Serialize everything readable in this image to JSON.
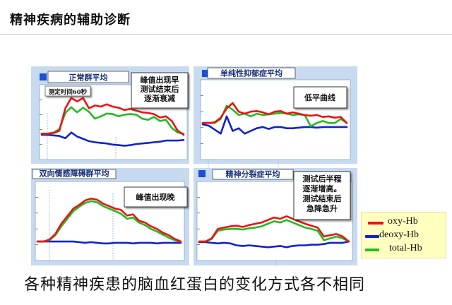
{
  "slide": {
    "title": "精神疾病的辅助诊断",
    "caption": "各种精神疾患的脑血红蛋白的变化方式各不相同"
  },
  "legend": [
    {
      "label": "oxy-Hb",
      "color": "#ee1111"
    },
    {
      "label": "deoxy-Hb",
      "color": "#1122cc"
    },
    {
      "label": "total-Hb",
      "color": "#22bb22"
    }
  ],
  "colors": {
    "panel_bg": "#c8daf0",
    "plot_bg": "#ffffff",
    "marker": "#1a4fd6",
    "gridline": "#8ec0e8"
  },
  "chart_data": [
    {
      "type": "line",
      "title": "正常群平均",
      "annotations": [
        "峰值出现早",
        "测试结束后",
        "逐渐衰减"
      ],
      "sub_label": "测定时间60秒",
      "series": [
        {
          "name": "oxy-Hb",
          "values": [
            0.0,
            0.0,
            0.01,
            0.05,
            0.44,
            0.62,
            0.56,
            0.62,
            0.44,
            0.49,
            0.47,
            0.51,
            0.47,
            0.45,
            0.41,
            0.43,
            0.4,
            0.37,
            0.36,
            0.34,
            0.28,
            0.3,
            0.22,
            0.05,
            -0.02
          ]
        },
        {
          "name": "deoxy-Hb",
          "values": [
            -0.02,
            -0.02,
            -0.03,
            -0.04,
            -0.08,
            0.02,
            -0.05,
            -0.09,
            -0.13,
            -0.15,
            -0.16,
            -0.17,
            -0.19,
            -0.2,
            -0.21,
            -0.2,
            -0.18,
            -0.17,
            -0.16,
            -0.15,
            -0.14,
            -0.12,
            -0.12,
            -0.12,
            -0.11
          ]
        },
        {
          "name": "total-Hb",
          "values": [
            0.0,
            0.0,
            0.02,
            0.08,
            0.36,
            0.46,
            0.37,
            0.45,
            0.38,
            0.26,
            0.3,
            0.35,
            0.34,
            0.3,
            0.33,
            0.34,
            0.33,
            0.26,
            0.24,
            0.29,
            0.22,
            0.24,
            0.1,
            0.02,
            0.0
          ]
        }
      ]
    },
    {
      "type": "line",
      "title": "单纯性抑郁症平均",
      "annotations": [
        "低平曲线"
      ],
      "series": [
        {
          "name": "oxy-Hb",
          "values": [
            0.0,
            0.0,
            0.01,
            0.08,
            0.22,
            0.3,
            0.17,
            0.14,
            0.17,
            0.18,
            0.16,
            0.13,
            0.17,
            0.18,
            0.14,
            0.16,
            0.14,
            0.12,
            0.11,
            0.12,
            0.09,
            0.1,
            0.08,
            0.09,
            0.0
          ]
        },
        {
          "name": "deoxy-Hb",
          "values": [
            -0.02,
            -0.04,
            -0.1,
            -0.16,
            0.1,
            -0.12,
            -0.08,
            -0.16,
            -0.12,
            -0.08,
            -0.06,
            -0.09,
            -0.06,
            -0.06,
            -0.08,
            -0.08,
            -0.07,
            -0.06,
            -0.06,
            -0.07,
            -0.06,
            -0.06,
            -0.06,
            -0.06,
            -0.06
          ]
        },
        {
          "name": "total-Hb",
          "values": [
            0.0,
            0.0,
            0.0,
            0.06,
            0.26,
            0.2,
            0.12,
            0.14,
            0.1,
            0.14,
            0.12,
            0.13,
            0.14,
            0.15,
            0.14,
            0.12,
            0.13,
            0.12,
            -0.05,
            0.0,
            0.03,
            0.0,
            0.0,
            0.06,
            0.0
          ]
        }
      ]
    },
    {
      "type": "line",
      "title": "双向情感障碍群平均",
      "annotations": [
        "峰值出现晚"
      ],
      "series": [
        {
          "name": "oxy-Hb",
          "values": [
            0.0,
            0.0,
            0.03,
            0.12,
            0.28,
            0.4,
            0.52,
            0.58,
            0.65,
            0.68,
            0.66,
            0.6,
            0.56,
            0.52,
            0.5,
            0.41,
            0.43,
            0.33,
            0.3,
            0.24,
            0.2,
            0.14,
            0.1,
            0.04,
            0.0
          ]
        },
        {
          "name": "deoxy-Hb",
          "values": [
            0.0,
            0.0,
            0.0,
            0.0,
            0.0,
            0.0,
            0.0,
            -0.01,
            -0.02,
            -0.01,
            -0.02,
            -0.03,
            -0.03,
            -0.02,
            -0.02,
            -0.02,
            -0.03,
            -0.02,
            -0.02,
            -0.02,
            -0.03,
            -0.02,
            -0.02,
            -0.02,
            -0.02
          ]
        },
        {
          "name": "total-Hb",
          "values": [
            0.0,
            0.0,
            0.02,
            0.1,
            0.24,
            0.36,
            0.48,
            0.55,
            0.61,
            0.64,
            0.62,
            0.56,
            0.52,
            0.48,
            0.44,
            0.36,
            0.38,
            0.3,
            0.26,
            0.2,
            0.16,
            0.11,
            0.06,
            0.02,
            0.0
          ]
        }
      ]
    },
    {
      "type": "line",
      "title": "精神分裂症平均",
      "annotations": [
        "测试后半程",
        "逐渐增高。",
        "测试结束后",
        "急降急升"
      ],
      "series": [
        {
          "name": "oxy-Hb",
          "values": [
            0.0,
            0.0,
            0.05,
            0.2,
            0.22,
            0.24,
            0.25,
            0.23,
            0.26,
            0.28,
            0.3,
            0.34,
            0.38,
            0.36,
            0.4,
            0.36,
            0.32,
            0.28,
            0.25,
            0.22,
            0.08,
            0.1,
            0.12,
            0.08,
            0.0
          ]
        },
        {
          "name": "deoxy-Hb",
          "values": [
            -0.01,
            -0.01,
            -0.02,
            -0.03,
            -0.02,
            -0.03,
            -0.06,
            -0.07,
            -0.06,
            -0.07,
            -0.08,
            -0.09,
            -0.08,
            -0.07,
            -0.09,
            -0.07,
            -0.06,
            -0.06,
            -0.05,
            -0.05,
            -0.04,
            -0.02,
            -0.02,
            -0.02,
            0.0
          ]
        },
        {
          "name": "total-Hb",
          "values": [
            0.0,
            0.0,
            0.04,
            0.17,
            0.19,
            0.2,
            0.2,
            0.19,
            0.21,
            0.22,
            0.24,
            0.28,
            0.32,
            0.3,
            0.34,
            0.3,
            0.26,
            0.22,
            0.2,
            0.17,
            0.02,
            0.05,
            0.08,
            0.05,
            0.0
          ]
        }
      ]
    }
  ]
}
